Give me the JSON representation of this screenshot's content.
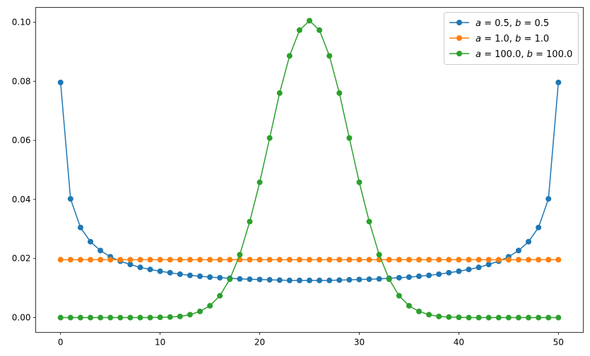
{
  "chart_data": {
    "type": "line",
    "title": "",
    "xlabel": "",
    "ylabel": "",
    "xlim": [
      -2.5,
      52.5
    ],
    "ylim": [
      -0.005,
      0.105
    ],
    "xticks": [
      0,
      10,
      20,
      30,
      40,
      50
    ],
    "yticks": [
      0.0,
      0.02,
      0.04,
      0.06,
      0.08,
      0.1
    ],
    "ytick_labels": [
      "0.00",
      "0.02",
      "0.04",
      "0.06",
      "0.08",
      "0.10"
    ],
    "grid": false,
    "legend_placement": "top-right",
    "markers": "circle",
    "x": [
      0,
      1,
      2,
      3,
      4,
      5,
      6,
      7,
      8,
      9,
      10,
      11,
      12,
      13,
      14,
      15,
      16,
      17,
      18,
      19,
      20,
      21,
      22,
      23,
      24,
      25,
      26,
      27,
      28,
      29,
      30,
      31,
      32,
      33,
      34,
      35,
      36,
      37,
      38,
      39,
      40,
      41,
      42,
      43,
      44,
      45,
      46,
      47,
      48,
      49,
      50
    ],
    "series": [
      {
        "name": "a = 0.5, b = 0.5",
        "a": "0.5",
        "b": "0.5",
        "color": "#1f77b4",
        "values": [
          0.0796,
          0.0402,
          0.0305,
          0.0257,
          0.0227,
          0.0206,
          0.0191,
          0.018,
          0.017,
          0.0163,
          0.0157,
          0.0152,
          0.0147,
          0.0143,
          0.014,
          0.0137,
          0.0135,
          0.0133,
          0.0131,
          0.013,
          0.0129,
          0.0128,
          0.0127,
          0.0126,
          0.0126,
          0.0126,
          0.0126,
          0.0126,
          0.0127,
          0.0128,
          0.0129,
          0.013,
          0.0131,
          0.0133,
          0.0135,
          0.0137,
          0.014,
          0.0143,
          0.0147,
          0.0152,
          0.0157,
          0.0163,
          0.017,
          0.018,
          0.0191,
          0.0206,
          0.0227,
          0.0257,
          0.0305,
          0.0402,
          0.0796
        ]
      },
      {
        "name": "a = 1.0, b = 1.0",
        "a": "1.0",
        "b": "1.0",
        "color": "#ff7f0e",
        "values": [
          0.0196,
          0.0196,
          0.0196,
          0.0196,
          0.0196,
          0.0196,
          0.0196,
          0.0196,
          0.0196,
          0.0196,
          0.0196,
          0.0196,
          0.0196,
          0.0196,
          0.0196,
          0.0196,
          0.0196,
          0.0196,
          0.0196,
          0.0196,
          0.0196,
          0.0196,
          0.0196,
          0.0196,
          0.0196,
          0.0196,
          0.0196,
          0.0196,
          0.0196,
          0.0196,
          0.0196,
          0.0196,
          0.0196,
          0.0196,
          0.0196,
          0.0196,
          0.0196,
          0.0196,
          0.0196,
          0.0196,
          0.0196,
          0.0196,
          0.0196,
          0.0196,
          0.0196,
          0.0196,
          0.0196,
          0.0196,
          0.0196,
          0.0196,
          0.0196
        ]
      },
      {
        "name": "a = 100.0, b = 100.0",
        "a": "100.0",
        "b": "100.0",
        "color": "#2ca02c",
        "values": [
          0,
          0,
          0,
          0,
          0,
          0,
          0,
          0,
          0,
          0,
          0.0001,
          0.0002,
          0.0004,
          0.001,
          0.0021,
          0.004,
          0.0074,
          0.013,
          0.0213,
          0.0325,
          0.0458,
          0.0608,
          0.076,
          0.0886,
          0.0973,
          0.1005,
          0.0973,
          0.0886,
          0.076,
          0.0608,
          0.0458,
          0.0325,
          0.0213,
          0.013,
          0.0074,
          0.004,
          0.0021,
          0.001,
          0.0004,
          0.0002,
          0.0001,
          0,
          0,
          0,
          0,
          0,
          0,
          0,
          0,
          0,
          0
        ]
      }
    ]
  }
}
